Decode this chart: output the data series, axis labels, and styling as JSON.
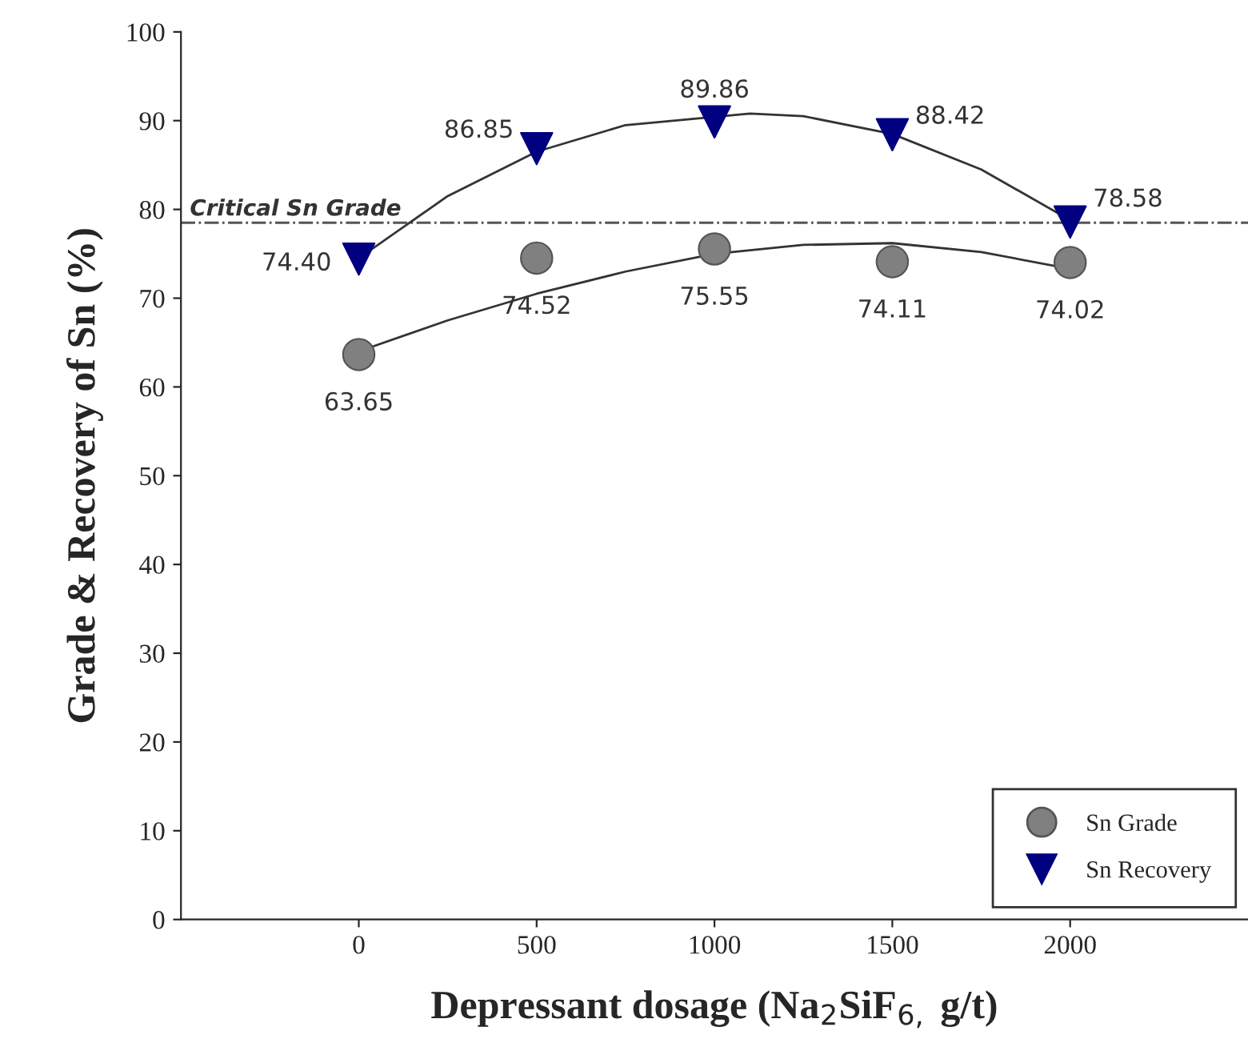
{
  "chart_data": {
    "type": "scatter",
    "xlabel": "Depressant dosage (Na$_{2}$SiF$_{6,}$ g/t)",
    "ylabel": "Grade & Recovery of Sn (%)",
    "xlim": [
      -500,
      2500
    ],
    "xticks": [
      0,
      500,
      1000,
      1500,
      2000
    ],
    "ylim": [
      0,
      100
    ],
    "yticks": [
      0,
      10,
      20,
      30,
      40,
      50,
      60,
      70,
      80,
      90,
      100
    ],
    "grid": false,
    "legend": "bottom right",
    "ref_lines": [
      {
        "axis": "y",
        "value": 78.5,
        "label": "Critical Sn Grade",
        "color": "#555555",
        "line_style": "dashdot"
      }
    ],
    "series": [
      {
        "name": "Sn Grade",
        "color": "#808080",
        "marker": "circle",
        "x": [
          0,
          500,
          1000,
          1500,
          2000
        ],
        "values": [
          63.65,
          74.52,
          75.55,
          74.11,
          74.02
        ],
        "value_labels": [
          "63.65",
          "74.52",
          "75.55",
          "74.11",
          "74.02"
        ]
      },
      {
        "name": "Sn Recovery",
        "color": "#000080",
        "marker": "triangle",
        "x": [
          0,
          500,
          1000,
          1500,
          2000
        ],
        "values": [
          74.4,
          86.85,
          89.86,
          88.42,
          78.58
        ],
        "value_labels": [
          "74.40",
          "86.85",
          "89.86",
          "88.42",
          "78.58"
        ]
      },
      {
        "type": "line",
        "color": "#333333",
        "marker": "none",
        "line_style": "solid",
        "x": [
          0,
          250,
          500,
          750,
          1000,
          1250,
          1500,
          1750,
          2000
        ],
        "values": [
          64,
          67.5,
          70.5,
          73,
          75,
          76,
          76.2,
          75.2,
          73.3
        ]
      },
      {
        "type": "line",
        "color": "#333333",
        "marker": "none",
        "line_style": "solid",
        "x": [
          0,
          250,
          500,
          750,
          1100,
          1250,
          1500,
          1750,
          2000
        ],
        "values": [
          74.5,
          81.5,
          86.5,
          89.5,
          90.8,
          90.5,
          88.5,
          84.5,
          78.8
        ]
      }
    ]
  }
}
